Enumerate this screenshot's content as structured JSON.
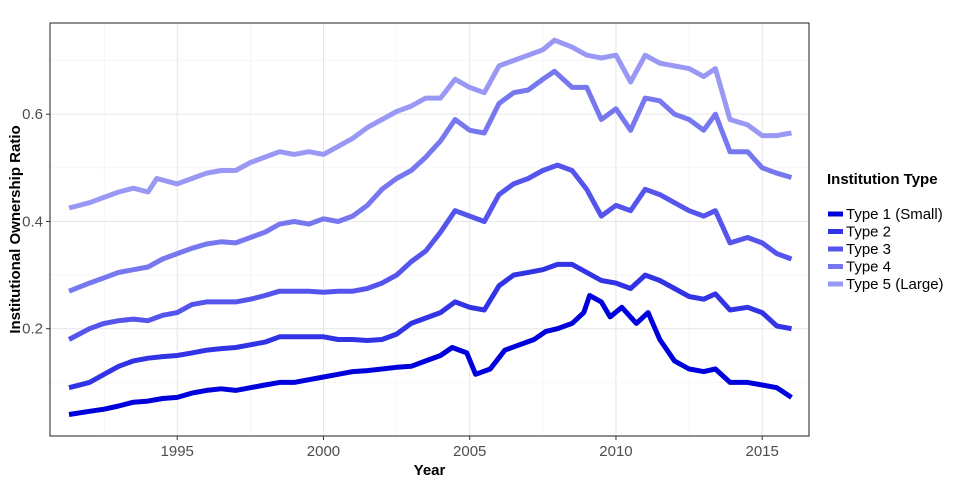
{
  "chart_data": {
    "type": "line",
    "title": "",
    "xlabel": "Year",
    "ylabel": "Institutional Ownership Ratio",
    "xlim": [
      1990.65,
      2016.6
    ],
    "ylim": [
      0.0,
      0.77
    ],
    "x_ticks": [
      1995,
      2000,
      2005,
      2010,
      2015
    ],
    "x_tick_labels": [
      "1995",
      "2000",
      "2005",
      "2010",
      "2015"
    ],
    "y_ticks": [
      0.2,
      0.4,
      0.6
    ],
    "y_tick_labels": [
      "0.2",
      "0.4",
      "0.6"
    ],
    "grid": true,
    "legend": {
      "title": "Institution Type",
      "position": "right"
    },
    "series": [
      {
        "name": "Type 1 (Small)",
        "color": "#0000dd",
        "points": [
          [
            1991.3,
            0.04
          ],
          [
            1992.0,
            0.046
          ],
          [
            1992.5,
            0.05
          ],
          [
            1993.0,
            0.056
          ],
          [
            1993.5,
            0.063
          ],
          [
            1994.0,
            0.065
          ],
          [
            1994.5,
            0.07
          ],
          [
            1995.0,
            0.072
          ],
          [
            1995.5,
            0.08
          ],
          [
            1996.0,
            0.085
          ],
          [
            1996.5,
            0.088
          ],
          [
            1997.0,
            0.085
          ],
          [
            1997.5,
            0.09
          ],
          [
            1998.0,
            0.095
          ],
          [
            1998.5,
            0.1
          ],
          [
            1999.0,
            0.1
          ],
          [
            1999.5,
            0.105
          ],
          [
            2000.0,
            0.11
          ],
          [
            2000.5,
            0.115
          ],
          [
            2001.0,
            0.12
          ],
          [
            2001.5,
            0.122
          ],
          [
            2002.0,
            0.125
          ],
          [
            2002.5,
            0.128
          ],
          [
            2003.0,
            0.13
          ],
          [
            2003.5,
            0.14
          ],
          [
            2004.0,
            0.15
          ],
          [
            2004.4,
            0.165
          ],
          [
            2004.9,
            0.155
          ],
          [
            2005.2,
            0.115
          ],
          [
            2005.7,
            0.125
          ],
          [
            2006.2,
            0.16
          ],
          [
            2006.7,
            0.17
          ],
          [
            2007.2,
            0.18
          ],
          [
            2007.6,
            0.195
          ],
          [
            2008.0,
            0.2
          ],
          [
            2008.5,
            0.21
          ],
          [
            2008.9,
            0.23
          ],
          [
            2009.1,
            0.262
          ],
          [
            2009.5,
            0.25
          ],
          [
            2009.8,
            0.222
          ],
          [
            2010.2,
            0.24
          ],
          [
            2010.7,
            0.21
          ],
          [
            2011.1,
            0.23
          ],
          [
            2011.5,
            0.18
          ],
          [
            2012.0,
            0.14
          ],
          [
            2012.5,
            0.125
          ],
          [
            2013.0,
            0.12
          ],
          [
            2013.4,
            0.125
          ],
          [
            2013.9,
            0.1
          ],
          [
            2014.5,
            0.1
          ],
          [
            2015.0,
            0.095
          ],
          [
            2015.5,
            0.09
          ],
          [
            2016.0,
            0.072
          ]
        ]
      },
      {
        "name": "Type 2",
        "color": "#3333e6",
        "points": [
          [
            1991.3,
            0.09
          ],
          [
            1992.0,
            0.1
          ],
          [
            1992.5,
            0.115
          ],
          [
            1993.0,
            0.13
          ],
          [
            1993.5,
            0.14
          ],
          [
            1994.0,
            0.145
          ],
          [
            1994.5,
            0.148
          ],
          [
            1995.0,
            0.15
          ],
          [
            1995.5,
            0.155
          ],
          [
            1996.0,
            0.16
          ],
          [
            1996.5,
            0.163
          ],
          [
            1997.0,
            0.165
          ],
          [
            1997.5,
            0.17
          ],
          [
            1998.0,
            0.175
          ],
          [
            1998.5,
            0.185
          ],
          [
            1999.0,
            0.185
          ],
          [
            1999.5,
            0.185
          ],
          [
            2000.0,
            0.185
          ],
          [
            2000.5,
            0.18
          ],
          [
            2001.0,
            0.18
          ],
          [
            2001.5,
            0.178
          ],
          [
            2002.0,
            0.18
          ],
          [
            2002.5,
            0.19
          ],
          [
            2003.0,
            0.21
          ],
          [
            2003.5,
            0.22
          ],
          [
            2004.0,
            0.23
          ],
          [
            2004.5,
            0.25
          ],
          [
            2005.0,
            0.24
          ],
          [
            2005.5,
            0.235
          ],
          [
            2006.0,
            0.28
          ],
          [
            2006.5,
            0.3
          ],
          [
            2007.0,
            0.305
          ],
          [
            2007.5,
            0.31
          ],
          [
            2008.0,
            0.32
          ],
          [
            2008.5,
            0.32
          ],
          [
            2009.0,
            0.305
          ],
          [
            2009.5,
            0.29
          ],
          [
            2010.0,
            0.285
          ],
          [
            2010.5,
            0.275
          ],
          [
            2011.0,
            0.3
          ],
          [
            2011.5,
            0.29
          ],
          [
            2012.0,
            0.275
          ],
          [
            2012.5,
            0.26
          ],
          [
            2013.0,
            0.255
          ],
          [
            2013.4,
            0.265
          ],
          [
            2013.9,
            0.235
          ],
          [
            2014.5,
            0.24
          ],
          [
            2015.0,
            0.23
          ],
          [
            2015.5,
            0.205
          ],
          [
            2016.0,
            0.2
          ]
        ]
      },
      {
        "name": "Type 3",
        "color": "#5555ee",
        "points": [
          [
            1991.3,
            0.18
          ],
          [
            1992.0,
            0.2
          ],
          [
            1992.5,
            0.21
          ],
          [
            1993.0,
            0.215
          ],
          [
            1993.5,
            0.218
          ],
          [
            1994.0,
            0.215
          ],
          [
            1994.5,
            0.225
          ],
          [
            1995.0,
            0.23
          ],
          [
            1995.5,
            0.245
          ],
          [
            1996.0,
            0.25
          ],
          [
            1996.5,
            0.25
          ],
          [
            1997.0,
            0.25
          ],
          [
            1997.5,
            0.255
          ],
          [
            1998.0,
            0.262
          ],
          [
            1998.5,
            0.27
          ],
          [
            1999.0,
            0.27
          ],
          [
            1999.5,
            0.27
          ],
          [
            2000.0,
            0.268
          ],
          [
            2000.5,
            0.27
          ],
          [
            2001.0,
            0.27
          ],
          [
            2001.5,
            0.275
          ],
          [
            2002.0,
            0.285
          ],
          [
            2002.5,
            0.3
          ],
          [
            2003.0,
            0.325
          ],
          [
            2003.5,
            0.345
          ],
          [
            2004.0,
            0.38
          ],
          [
            2004.5,
            0.42
          ],
          [
            2005.0,
            0.41
          ],
          [
            2005.5,
            0.4
          ],
          [
            2006.0,
            0.45
          ],
          [
            2006.5,
            0.47
          ],
          [
            2007.0,
            0.48
          ],
          [
            2007.5,
            0.495
          ],
          [
            2008.0,
            0.505
          ],
          [
            2008.5,
            0.495
          ],
          [
            2009.0,
            0.46
          ],
          [
            2009.5,
            0.41
          ],
          [
            2010.0,
            0.43
          ],
          [
            2010.5,
            0.42
          ],
          [
            2011.0,
            0.46
          ],
          [
            2011.5,
            0.45
          ],
          [
            2012.0,
            0.435
          ],
          [
            2012.5,
            0.42
          ],
          [
            2013.0,
            0.41
          ],
          [
            2013.4,
            0.42
          ],
          [
            2013.9,
            0.36
          ],
          [
            2014.5,
            0.37
          ],
          [
            2015.0,
            0.36
          ],
          [
            2015.5,
            0.34
          ],
          [
            2016.0,
            0.33
          ]
        ]
      },
      {
        "name": "Type 4",
        "color": "#7777f0",
        "points": [
          [
            1991.3,
            0.27
          ],
          [
            1992.0,
            0.285
          ],
          [
            1992.5,
            0.295
          ],
          [
            1993.0,
            0.305
          ],
          [
            1993.5,
            0.31
          ],
          [
            1994.0,
            0.315
          ],
          [
            1994.5,
            0.33
          ],
          [
            1995.0,
            0.34
          ],
          [
            1995.5,
            0.35
          ],
          [
            1996.0,
            0.358
          ],
          [
            1996.5,
            0.362
          ],
          [
            1997.0,
            0.36
          ],
          [
            1997.5,
            0.37
          ],
          [
            1998.0,
            0.38
          ],
          [
            1998.5,
            0.395
          ],
          [
            1999.0,
            0.4
          ],
          [
            1999.5,
            0.395
          ],
          [
            2000.0,
            0.405
          ],
          [
            2000.5,
            0.4
          ],
          [
            2001.0,
            0.41
          ],
          [
            2001.5,
            0.43
          ],
          [
            2002.0,
            0.46
          ],
          [
            2002.5,
            0.48
          ],
          [
            2003.0,
            0.495
          ],
          [
            2003.5,
            0.52
          ],
          [
            2004.0,
            0.55
          ],
          [
            2004.5,
            0.59
          ],
          [
            2005.0,
            0.57
          ],
          [
            2005.5,
            0.565
          ],
          [
            2006.0,
            0.62
          ],
          [
            2006.5,
            0.64
          ],
          [
            2007.0,
            0.645
          ],
          [
            2007.5,
            0.665
          ],
          [
            2007.9,
            0.68
          ],
          [
            2008.5,
            0.65
          ],
          [
            2009.0,
            0.65
          ],
          [
            2009.5,
            0.59
          ],
          [
            2010.0,
            0.61
          ],
          [
            2010.5,
            0.57
          ],
          [
            2011.0,
            0.63
          ],
          [
            2011.5,
            0.625
          ],
          [
            2012.0,
            0.6
          ],
          [
            2012.5,
            0.59
          ],
          [
            2013.0,
            0.57
          ],
          [
            2013.4,
            0.6
          ],
          [
            2013.9,
            0.53
          ],
          [
            2014.5,
            0.53
          ],
          [
            2015.0,
            0.5
          ],
          [
            2015.5,
            0.49
          ],
          [
            2016.0,
            0.482
          ]
        ]
      },
      {
        "name": "Type 5 (Large)",
        "color": "#9999f5",
        "points": [
          [
            1991.3,
            0.425
          ],
          [
            1992.0,
            0.435
          ],
          [
            1992.5,
            0.445
          ],
          [
            1993.0,
            0.455
          ],
          [
            1993.5,
            0.462
          ],
          [
            1994.0,
            0.455
          ],
          [
            1994.3,
            0.48
          ],
          [
            1995.0,
            0.47
          ],
          [
            1995.5,
            0.48
          ],
          [
            1996.0,
            0.49
          ],
          [
            1996.5,
            0.495
          ],
          [
            1997.0,
            0.495
          ],
          [
            1997.5,
            0.51
          ],
          [
            1998.0,
            0.52
          ],
          [
            1998.5,
            0.53
          ],
          [
            1999.0,
            0.525
          ],
          [
            1999.5,
            0.53
          ],
          [
            2000.0,
            0.525
          ],
          [
            2000.5,
            0.54
          ],
          [
            2001.0,
            0.555
          ],
          [
            2001.5,
            0.575
          ],
          [
            2002.0,
            0.59
          ],
          [
            2002.5,
            0.605
          ],
          [
            2003.0,
            0.615
          ],
          [
            2003.5,
            0.63
          ],
          [
            2004.0,
            0.63
          ],
          [
            2004.5,
            0.665
          ],
          [
            2005.0,
            0.65
          ],
          [
            2005.5,
            0.64
          ],
          [
            2006.0,
            0.69
          ],
          [
            2006.5,
            0.7
          ],
          [
            2007.0,
            0.71
          ],
          [
            2007.5,
            0.72
          ],
          [
            2007.9,
            0.738
          ],
          [
            2008.5,
            0.725
          ],
          [
            2009.0,
            0.71
          ],
          [
            2009.5,
            0.705
          ],
          [
            2010.0,
            0.71
          ],
          [
            2010.5,
            0.66
          ],
          [
            2011.0,
            0.71
          ],
          [
            2011.5,
            0.695
          ],
          [
            2012.0,
            0.69
          ],
          [
            2012.5,
            0.685
          ],
          [
            2013.0,
            0.67
          ],
          [
            2013.4,
            0.685
          ],
          [
            2013.9,
            0.59
          ],
          [
            2014.5,
            0.58
          ],
          [
            2015.0,
            0.56
          ],
          [
            2015.5,
            0.56
          ],
          [
            2016.0,
            0.565
          ]
        ]
      }
    ]
  }
}
